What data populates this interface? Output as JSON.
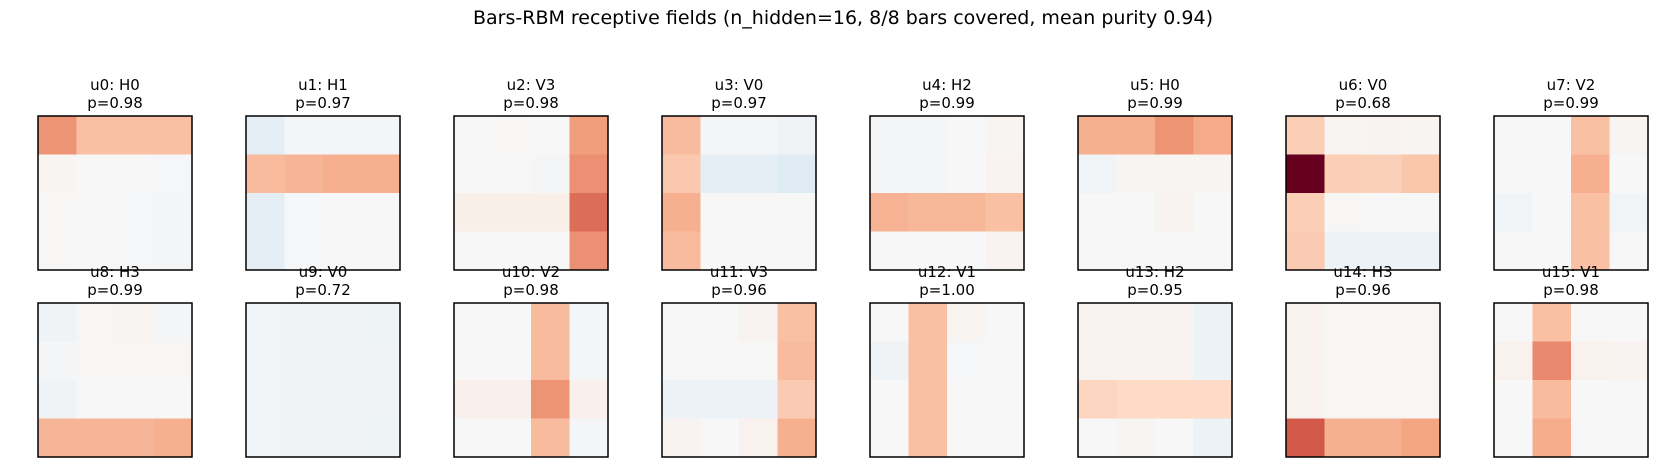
{
  "chart_data": {
    "type": "heatmap",
    "title": "Bars-RBM receptive fields  (n_hidden=16, 8/8 bars covered, mean purity 0.94)",
    "colormap": "RdBu_r (diverging: blue negative, white zero, red positive)",
    "color_range": [
      -1,
      1
    ],
    "grid_size": [
      4,
      4
    ],
    "layout": "2 rows x 8 columns",
    "units": [
      {
        "label": "u0: H0",
        "purity": "p=0.98",
        "weights": [
          [
            0.45,
            0.3,
            0.3,
            0.3
          ],
          [
            0.02,
            0.0,
            0.0,
            -0.01
          ],
          [
            0.01,
            0.0,
            -0.01,
            -0.02
          ],
          [
            0.01,
            0.0,
            -0.01,
            -0.02
          ]
        ]
      },
      {
        "label": "u1: H1",
        "purity": "p=0.97",
        "weights": [
          [
            -0.1,
            -0.02,
            -0.02,
            -0.02
          ],
          [
            0.32,
            0.34,
            0.36,
            0.36
          ],
          [
            -0.1,
            -0.01,
            0.0,
            0.0
          ],
          [
            -0.1,
            -0.01,
            0.0,
            0.0
          ]
        ]
      },
      {
        "label": "u2: V3",
        "purity": "p=0.98",
        "weights": [
          [
            0.0,
            0.01,
            0.0,
            0.42
          ],
          [
            0.0,
            0.0,
            -0.02,
            0.46
          ],
          [
            0.06,
            0.06,
            0.06,
            0.56
          ],
          [
            0.0,
            0.0,
            0.0,
            0.46
          ]
        ]
      },
      {
        "label": "u3: V0",
        "purity": "p=0.97",
        "weights": [
          [
            0.32,
            -0.02,
            -0.02,
            -0.04
          ],
          [
            0.27,
            -0.1,
            -0.1,
            -0.12
          ],
          [
            0.36,
            0.0,
            0.0,
            0.0
          ],
          [
            0.32,
            0.0,
            0.0,
            0.0
          ]
        ]
      },
      {
        "label": "u4: H2",
        "purity": "p=0.99",
        "weights": [
          [
            -0.02,
            -0.02,
            0.0,
            0.02
          ],
          [
            -0.02,
            -0.02,
            0.0,
            0.03
          ],
          [
            0.35,
            0.33,
            0.33,
            0.3
          ],
          [
            0.0,
            0.0,
            0.0,
            0.03
          ]
        ]
      },
      {
        "label": "u5: H0",
        "purity": "p=0.99",
        "weights": [
          [
            0.36,
            0.36,
            0.45,
            0.38
          ],
          [
            -0.03,
            0.02,
            0.02,
            0.02
          ],
          [
            0.0,
            0.0,
            0.03,
            0.0
          ],
          [
            0.0,
            0.0,
            0.0,
            0.0
          ]
        ]
      },
      {
        "label": "u6: V0",
        "purity": "p=0.68",
        "weights": [
          [
            0.25,
            0.02,
            0.03,
            0.02
          ],
          [
            1.0,
            0.25,
            0.24,
            0.28
          ],
          [
            0.25,
            0.01,
            0.0,
            0.0
          ],
          [
            0.26,
            -0.06,
            -0.06,
            -0.06
          ]
        ]
      },
      {
        "label": "u7: V2",
        "purity": "p=0.99",
        "weights": [
          [
            0.0,
            0.0,
            0.3,
            0.02
          ],
          [
            0.0,
            0.0,
            0.36,
            0.0
          ],
          [
            -0.03,
            0.0,
            0.3,
            -0.03
          ],
          [
            0.0,
            0.0,
            0.3,
            0.0
          ]
        ]
      },
      {
        "label": "u8: H3",
        "purity": "p=0.99",
        "weights": [
          [
            -0.04,
            0.01,
            0.02,
            -0.02
          ],
          [
            -0.02,
            0.01,
            0.01,
            0.01
          ],
          [
            -0.04,
            0.0,
            0.0,
            0.0
          ],
          [
            0.34,
            0.34,
            0.34,
            0.36
          ]
        ]
      },
      {
        "label": "u9: V0",
        "purity": "p=0.72",
        "weights": [
          [
            -0.03,
            -0.04,
            -0.04,
            -0.05
          ],
          [
            -0.03,
            -0.04,
            -0.04,
            -0.04
          ],
          [
            -0.03,
            -0.04,
            -0.04,
            -0.04
          ],
          [
            -0.03,
            -0.04,
            -0.04,
            -0.05
          ]
        ]
      },
      {
        "label": "u10: V2",
        "purity": "p=0.98",
        "weights": [
          [
            0.0,
            0.0,
            0.32,
            -0.02
          ],
          [
            0.0,
            0.0,
            0.32,
            -0.02
          ],
          [
            0.05,
            0.05,
            0.45,
            0.05
          ],
          [
            0.0,
            0.0,
            0.32,
            -0.02
          ]
        ]
      },
      {
        "label": "u11: V3",
        "purity": "p=0.96",
        "weights": [
          [
            0.0,
            0.0,
            0.03,
            0.3
          ],
          [
            0.0,
            0.0,
            0.0,
            0.32
          ],
          [
            -0.06,
            -0.06,
            -0.06,
            0.26
          ],
          [
            0.03,
            0.0,
            0.04,
            0.36
          ]
        ]
      },
      {
        "label": "u12: V1",
        "purity": "p=1.00",
        "weights": [
          [
            0.0,
            0.3,
            0.02,
            0.0
          ],
          [
            -0.04,
            0.3,
            -0.01,
            0.0
          ],
          [
            0.0,
            0.3,
            0.0,
            0.0
          ],
          [
            0.0,
            0.3,
            0.0,
            0.0
          ]
        ]
      },
      {
        "label": "u13: H2",
        "purity": "p=0.95",
        "weights": [
          [
            0.03,
            0.03,
            0.03,
            -0.06
          ],
          [
            0.03,
            0.03,
            0.03,
            -0.06
          ],
          [
            0.22,
            0.2,
            0.2,
            0.2
          ],
          [
            0.0,
            0.02,
            0.0,
            -0.06
          ]
        ]
      },
      {
        "label": "u14: H3",
        "purity": "p=0.96",
        "weights": [
          [
            0.04,
            0.01,
            0.01,
            0.01
          ],
          [
            0.04,
            0.01,
            0.01,
            0.01
          ],
          [
            0.04,
            0.01,
            0.01,
            0.01
          ],
          [
            0.62,
            0.36,
            0.36,
            0.4
          ]
        ]
      },
      {
        "label": "u15: V1",
        "purity": "p=0.98",
        "weights": [
          [
            0.0,
            0.3,
            0.0,
            0.0
          ],
          [
            0.04,
            0.48,
            0.04,
            0.03
          ],
          [
            0.0,
            0.32,
            0.0,
            0.0
          ],
          [
            0.0,
            0.37,
            0.0,
            0.0
          ]
        ]
      }
    ]
  }
}
